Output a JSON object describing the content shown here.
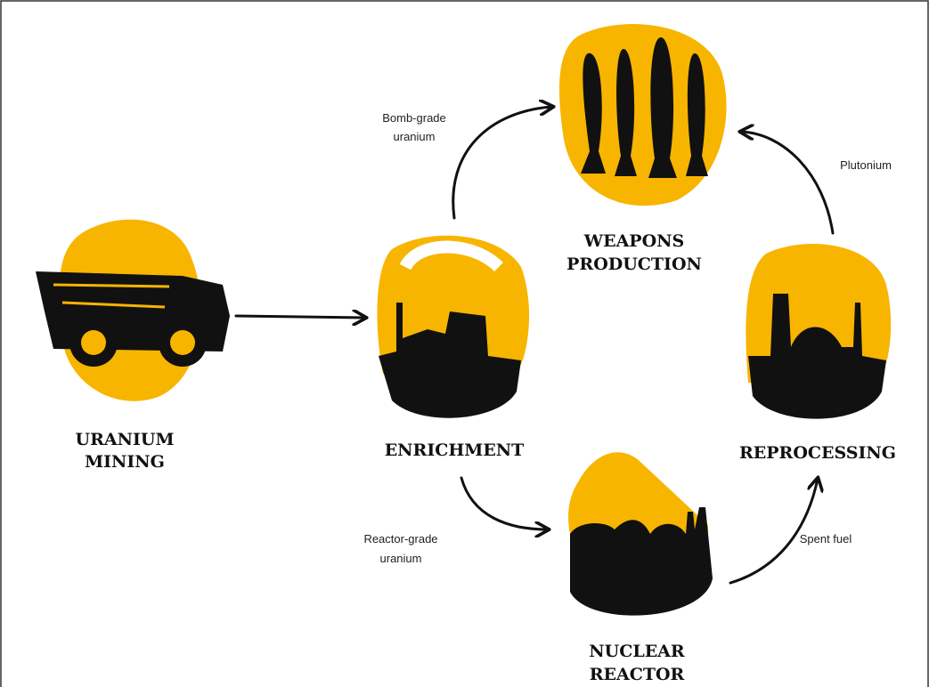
{
  "nodes": [
    {
      "label": [
        "URANIUM",
        "MINING"
      ]
    },
    {
      "label": [
        "ENRICHMENT"
      ]
    },
    {
      "label": [
        "WEAPONS",
        "PRODUCTION"
      ]
    },
    {
      "label": [
        "REPROCESSING"
      ]
    },
    {
      "label": [
        "NUCLEAR",
        "REACTOR"
      ]
    }
  ],
  "edges": [
    {
      "label": [
        "Bomb-grade",
        "uranium"
      ]
    },
    {
      "label": [
        "Plutonium"
      ]
    },
    {
      "label": [
        "Reactor-grade",
        "uranium"
      ]
    },
    {
      "label": [
        "Spent fuel"
      ]
    }
  ]
}
